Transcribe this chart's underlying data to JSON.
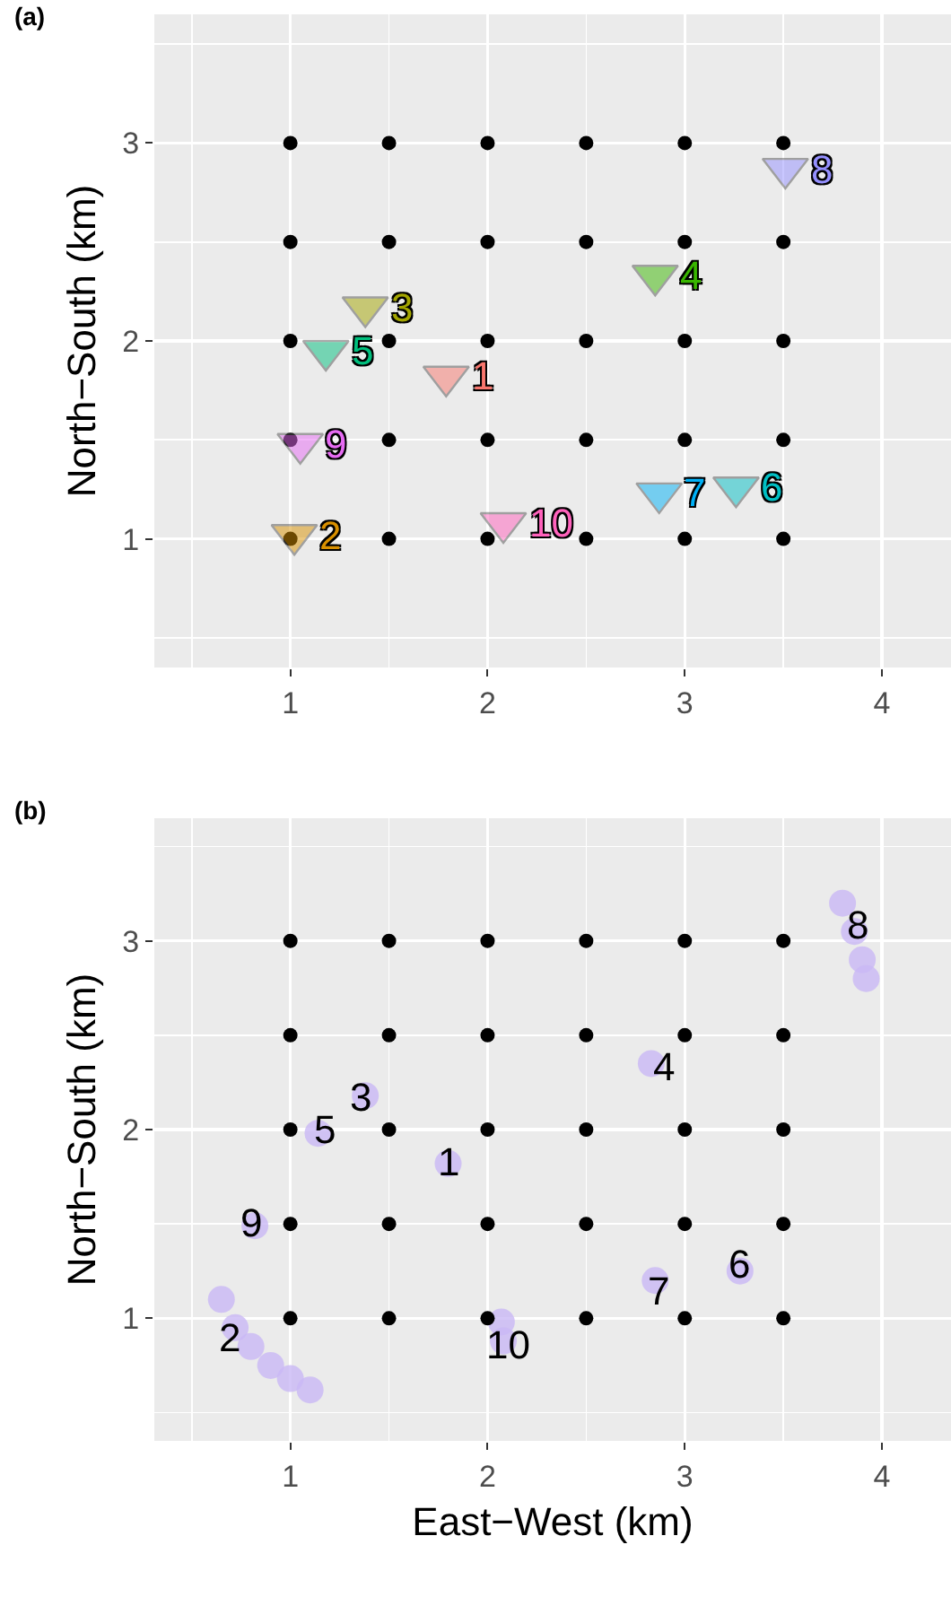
{
  "chart_data": [
    {
      "type": "scatter",
      "title": "(a)",
      "ylabel": "North−South (km)",
      "xlim": [
        0.31,
        4.35
      ],
      "ylim": [
        0.35,
        3.65
      ],
      "xticks": [
        1,
        2,
        3,
        4
      ],
      "yticks": [
        1,
        2,
        3
      ],
      "grid": true,
      "series": [
        {
          "type": "scatter",
          "marker": "circle",
          "color": "#000000",
          "x": [
            1,
            1.5,
            2,
            2.5,
            3,
            3.5,
            1,
            1.5,
            2,
            2.5,
            3,
            3.5,
            1,
            1.5,
            2,
            2.5,
            3,
            3.5,
            1,
            1.5,
            2,
            2.5,
            3,
            3.5,
            1,
            1.5,
            2,
            2.5,
            3,
            3.5
          ],
          "values": [
            1,
            1,
            1,
            1,
            1,
            1,
            1.5,
            1.5,
            1.5,
            1.5,
            1.5,
            1.5,
            2,
            2,
            2,
            2,
            2,
            2,
            2.5,
            2.5,
            2.5,
            2.5,
            2.5,
            2.5,
            3,
            3,
            3,
            3,
            3,
            3
          ]
        },
        {
          "type": "scatter",
          "marker": "triangle",
          "colors": [
            "#f8766d",
            "#d89000",
            "#a3a500",
            "#39b600",
            "#00bf7d",
            "#00bfc4",
            "#00b0f6",
            "#9590ff",
            "#e76bf3",
            "#ff62bc"
          ],
          "x": [
            1.79,
            1.02,
            1.38,
            2.85,
            1.18,
            3.26,
            2.87,
            3.51,
            1.05,
            2.08
          ],
          "values": [
            1.82,
            1.02,
            2.17,
            2.33,
            1.95,
            1.26,
            1.23,
            2.87,
            1.48,
            1.08
          ]
        }
      ],
      "annotations": [
        {
          "text": "1",
          "x": 1.79,
          "y": 1.82
        },
        {
          "text": "2",
          "x": 1.02,
          "y": 1.02
        },
        {
          "text": "3",
          "x": 1.38,
          "y": 2.17
        },
        {
          "text": "4",
          "x": 2.85,
          "y": 2.33
        },
        {
          "text": "5",
          "x": 1.18,
          "y": 1.95
        },
        {
          "text": "6",
          "x": 3.26,
          "y": 1.26
        },
        {
          "text": "7",
          "x": 2.87,
          "y": 1.23
        },
        {
          "text": "8",
          "x": 3.51,
          "y": 2.87
        },
        {
          "text": "9",
          "x": 1.05,
          "y": 1.48
        },
        {
          "text": "10",
          "x": 2.08,
          "y": 1.08
        }
      ]
    },
    {
      "type": "scatter",
      "title": "(b)",
      "xlabel": "East−West (km)",
      "ylabel": "North−South (km)",
      "xlim": [
        0.31,
        4.35
      ],
      "ylim": [
        0.35,
        3.65
      ],
      "xticks": [
        1,
        2,
        3,
        4
      ],
      "yticks": [
        1,
        2,
        3
      ],
      "grid": true,
      "series": [
        {
          "type": "scatter",
          "marker": "circle",
          "color": "#c9b8f5",
          "x": [
            1.8,
            0.65,
            0.72,
            0.8,
            0.9,
            1.0,
            1.1,
            1.38,
            2.83,
            1.14,
            3.28,
            2.85,
            3.8,
            3.86,
            3.9,
            3.92,
            0.82,
            2.07,
            2.08
          ],
          "values": [
            1.82,
            1.1,
            0.95,
            0.85,
            0.75,
            0.68,
            0.62,
            2.18,
            2.35,
            1.98,
            1.25,
            1.2,
            3.2,
            3.05,
            2.9,
            2.8,
            1.49,
            0.98,
            0.88
          ]
        },
        {
          "type": "scatter",
          "marker": "circle",
          "color": "#000000",
          "x": [
            1,
            1.5,
            2,
            2.5,
            3,
            3.5,
            1,
            1.5,
            2,
            2.5,
            3,
            3.5,
            1,
            1.5,
            2,
            2.5,
            3,
            3.5,
            1,
            1.5,
            2,
            2.5,
            3,
            3.5,
            1,
            1.5,
            2,
            2.5,
            3,
            3.5
          ],
          "values": [
            1,
            1,
            1,
            1,
            1,
            1,
            1.5,
            1.5,
            1.5,
            1.5,
            1.5,
            1.5,
            2,
            2,
            2,
            2,
            2,
            2,
            2.5,
            2.5,
            2.5,
            2.5,
            2.5,
            2.5,
            3,
            3,
            3,
            3,
            3,
            3
          ]
        }
      ],
      "annotations": [
        {
          "text": "1",
          "x": 1.8,
          "y": 1.83
        },
        {
          "text": "2",
          "x": 0.69,
          "y": 0.9
        },
        {
          "text": "3",
          "x": 1.36,
          "y": 2.17
        },
        {
          "text": "4",
          "x": 2.89,
          "y": 2.33
        },
        {
          "text": "5",
          "x": 1.17,
          "y": 2.0
        },
        {
          "text": "6",
          "x": 3.28,
          "y": 1.29
        },
        {
          "text": "7",
          "x": 2.87,
          "y": 1.14
        },
        {
          "text": "8",
          "x": 3.88,
          "y": 3.08
        },
        {
          "text": "9",
          "x": 0.8,
          "y": 1.51
        },
        {
          "text": "10",
          "x": 2.1,
          "y": 0.86
        }
      ]
    }
  ]
}
